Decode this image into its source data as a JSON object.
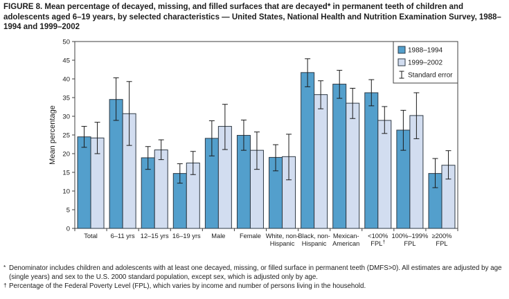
{
  "figure": {
    "title": "FIGURE 8. Mean percentage of decayed, missing, and filled surfaces that are decayed* in permanent teeth of children and adolescents aged 6–19 years, by selected characteristics — United States, National Health and Nutrition Examination Survey, 1988–1994 and 1999–2002"
  },
  "colors": {
    "bar_1988_1994": "#539fcc",
    "bar_1999_2002": "#d2ddf0",
    "bar_border": "#2e3944",
    "axis": "#3f3f3f",
    "error_bar": "#1a1a1a",
    "text": "#1a1a1a"
  },
  "chart_data": {
    "type": "bar",
    "title": "",
    "xlabel": "",
    "ylabel": "Mean percentage",
    "ylim": [
      0,
      50
    ],
    "yticks": [
      0,
      5,
      10,
      15,
      20,
      25,
      30,
      35,
      40,
      45,
      50
    ],
    "grid": false,
    "legend_position": "top-right-inside",
    "legend": [
      {
        "label": "1988–1994",
        "type": "swatch",
        "color": "#539fcc"
      },
      {
        "label": "1999–2002",
        "type": "swatch",
        "color": "#d2ddf0"
      },
      {
        "label": "Standard error",
        "type": "error-bar"
      }
    ],
    "categories": [
      [
        "Total"
      ],
      [
        "6–11 yrs"
      ],
      [
        "12–15 yrs"
      ],
      [
        "16–19 yrs"
      ],
      [
        "Male"
      ],
      [
        "Female"
      ],
      [
        "White, non-",
        "Hispanic"
      ],
      [
        "Black, non-",
        "Hispanic"
      ],
      [
        "Mexican-",
        "American"
      ],
      [
        "<100%",
        "FPL†"
      ],
      [
        "100%–199%",
        "FPL"
      ],
      [
        "≥200%",
        "FPL"
      ]
    ],
    "series": [
      {
        "name": "1988–1994",
        "values": [
          24.5,
          34.5,
          18.9,
          14.7,
          24.1,
          24.9,
          19.0,
          41.7,
          38.6,
          36.3,
          26.3,
          14.7
        ],
        "err_high": [
          27.3,
          40.3,
          21.9,
          17.3,
          28.8,
          29.0,
          22.4,
          45.4,
          42.3,
          39.8,
          31.6,
          18.7
        ],
        "err_low": [
          21.7,
          28.9,
          15.8,
          12.1,
          19.4,
          20.9,
          15.4,
          37.9,
          34.8,
          32.8,
          20.9,
          10.9
        ]
      },
      {
        "name": "1999–2002",
        "values": [
          24.2,
          30.7,
          21.0,
          17.5,
          27.3,
          20.9,
          19.2,
          35.8,
          33.5,
          28.9,
          30.2,
          16.9
        ],
        "err_high": [
          28.4,
          39.3,
          23.7,
          20.6,
          33.2,
          25.8,
          25.2,
          39.5,
          37.5,
          32.6,
          36.3,
          20.8
        ],
        "err_low": [
          20.0,
          22.2,
          18.4,
          14.4,
          21.1,
          15.8,
          13.0,
          32.0,
          29.4,
          25.4,
          24.0,
          13.2
        ]
      }
    ]
  },
  "footnotes": [
    {
      "marker": "*",
      "text": "Denominator includes children and adolescents with at least one decayed, missing, or filled surface in permanent teeth (DMFS>0). All estimates are adjusted by age (single years) and sex to the U.S. 2000 standard population, except sex, which is adjusted only by age."
    },
    {
      "marker": "†",
      "text": "Percentage of the Federal Poverty Level (FPL), which varies by income and number of persons living in the household."
    }
  ]
}
